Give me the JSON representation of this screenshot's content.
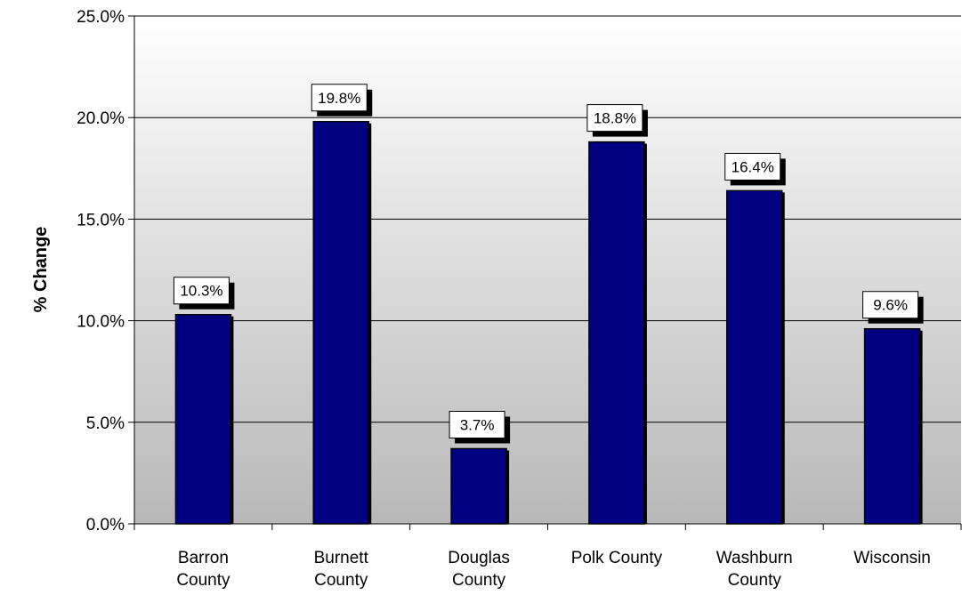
{
  "chart_data": {
    "type": "bar",
    "title": "",
    "xlabel": "",
    "ylabel": "% Change",
    "categories": [
      "Barron County",
      "Burnett County",
      "Douglas County",
      "Polk County",
      "Washburn County",
      "Wisconsin"
    ],
    "values": [
      10.3,
      19.8,
      3.7,
      18.8,
      16.4,
      9.6
    ],
    "data_labels": [
      "10.3%",
      "19.8%",
      "3.7%",
      "18.8%",
      "16.4%",
      "9.6%"
    ],
    "ylim": [
      0,
      25
    ],
    "yticks": [
      0,
      5,
      10,
      15,
      20,
      25
    ],
    "ytick_labels": [
      "0.0%",
      "5.0%",
      "10.0%",
      "15.0%",
      "20.0%",
      "25.0%"
    ],
    "grid": true,
    "legend": "none",
    "bar_color": "#000080",
    "background_gradient": [
      "#ffffff",
      "#b8b8b8"
    ]
  }
}
